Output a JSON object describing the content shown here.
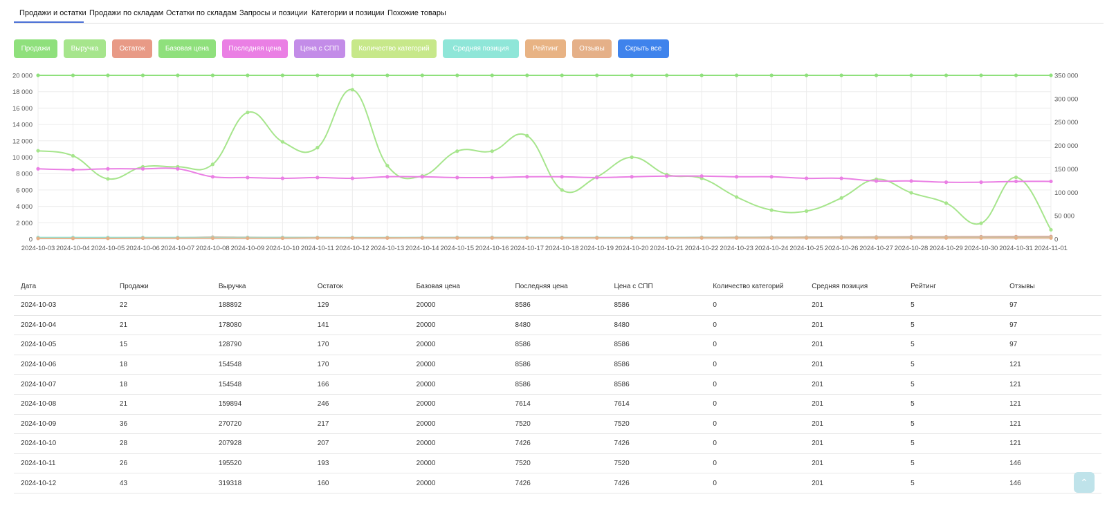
{
  "tabs": [
    {
      "label": "Продажи и остатки",
      "active": true
    },
    {
      "label": "Продажи по складам",
      "active": false
    },
    {
      "label": "Остатки по складам",
      "active": false
    },
    {
      "label": "Запросы и позиции",
      "active": false
    },
    {
      "label": "Категории и позиции",
      "active": false
    },
    {
      "label": "Похожие товары",
      "active": false
    }
  ],
  "series_buttons": [
    {
      "label": "Продажи",
      "color": "#8fe07c"
    },
    {
      "label": "Выручка",
      "color": "#a6e58c"
    },
    {
      "label": "Остаток",
      "color": "#e89a86"
    },
    {
      "label": "Базовая цена",
      "color": "#8fe07c"
    },
    {
      "label": "Последняя цена",
      "color": "#ea7fe4"
    },
    {
      "label": "Цена с СПП",
      "color": "#c38ce8"
    },
    {
      "label": "Количество категорий",
      "color": "#c7e88a"
    },
    {
      "label": "Средняя позиция",
      "color": "#8fe6d8"
    },
    {
      "label": "Рейтинг",
      "color": "#e8b384"
    },
    {
      "label": "Отзывы",
      "color": "#e5b088"
    },
    {
      "label": "Скрыть все",
      "color": "#3f83ec"
    }
  ],
  "chart_data": {
    "type": "line",
    "x": [
      "2024-10-03",
      "2024-10-04",
      "2024-10-05",
      "2024-10-06",
      "2024-10-07",
      "2024-10-08",
      "2024-10-09",
      "2024-10-10",
      "2024-10-11",
      "2024-10-12",
      "2024-10-13",
      "2024-10-14",
      "2024-10-15",
      "2024-10-16",
      "2024-10-17",
      "2024-10-18",
      "2024-10-19",
      "2024-10-20",
      "2024-10-21",
      "2024-10-22",
      "2024-10-23",
      "2024-10-24",
      "2024-10-25",
      "2024-10-26",
      "2024-10-27",
      "2024-10-28",
      "2024-10-29",
      "2024-10-30",
      "2024-10-31",
      "2024-11-01"
    ],
    "y_left": {
      "range": [
        0,
        20000
      ],
      "ticks": [
        "0",
        "2 000",
        "4 000",
        "6 000",
        "8 000",
        "10 000",
        "12 000",
        "14 000",
        "16 000",
        "18 000",
        "20 000"
      ]
    },
    "y_right": {
      "range": [
        0,
        350000
      ],
      "ticks": [
        "0",
        "50 000",
        "100 000",
        "150 000",
        "200 000",
        "250 000",
        "300 000",
        "350 000"
      ]
    },
    "grid": true,
    "series": [
      {
        "color": "#8fe07c",
        "axis": "left",
        "smooth": false,
        "values": [
          20000,
          20000,
          20000,
          20000,
          20000,
          20000,
          20000,
          20000,
          20000,
          20000,
          20000,
          20000,
          20000,
          20000,
          20000,
          20000,
          20000,
          20000,
          20000,
          20000,
          20000,
          20000,
          20000,
          20000,
          20000,
          20000,
          20000,
          20000,
          20000,
          20000
        ]
      },
      {
        "color": "#a6e58c",
        "axis": "right",
        "smooth": true,
        "values": [
          188892,
          178080,
          128790,
          154548,
          154548,
          159894,
          270720,
          207928,
          195520,
          319318,
          157000,
          135000,
          188000,
          188000,
          221000,
          105000,
          133000,
          175000,
          138000,
          130000,
          90000,
          62000,
          60000,
          88000,
          128000,
          99000,
          77000,
          34000,
          132000,
          20000
        ]
      },
      {
        "color": "#ea7fe4",
        "axis": "left",
        "smooth": true,
        "values": [
          8586,
          8480,
          8586,
          8586,
          8586,
          7614,
          7520,
          7426,
          7520,
          7426,
          7614,
          7614,
          7520,
          7520,
          7614,
          7614,
          7520,
          7614,
          7700,
          7700,
          7614,
          7614,
          7426,
          7426,
          7100,
          7100,
          6950,
          6950,
          7050,
          7050
        ]
      },
      {
        "color": "#e89a86",
        "axis": "left",
        "smooth": true,
        "values": [
          129,
          141,
          170,
          170,
          166,
          246,
          217,
          207,
          193,
          160,
          150,
          200,
          210,
          210,
          200,
          190,
          190,
          180,
          200,
          220,
          230,
          240,
          250,
          260,
          270,
          280,
          290,
          300,
          310,
          320
        ]
      },
      {
        "color": "#8fe6d8",
        "axis": "left",
        "smooth": false,
        "values": [
          201,
          201,
          201,
          201,
          201,
          201,
          201,
          201,
          201,
          201,
          201,
          201,
          201,
          201,
          201,
          201,
          201,
          201,
          201,
          201,
          201,
          201,
          201,
          201,
          201,
          201,
          201,
          201,
          201,
          201
        ]
      },
      {
        "color": "#e5b088",
        "axis": "left",
        "smooth": false,
        "values": [
          97,
          97,
          97,
          121,
          121,
          121,
          121,
          121,
          146,
          146,
          146,
          146,
          146,
          146,
          146,
          146,
          146,
          146,
          146,
          146,
          146,
          146,
          146,
          146,
          146,
          146,
          146,
          146,
          146,
          146
        ]
      }
    ]
  },
  "table": {
    "headers": [
      "Дата",
      "Продажи",
      "Выручка",
      "Остаток",
      "Базовая цена",
      "Последняя цена",
      "Цена с СПП",
      "Количество категорий",
      "Средняя позиция",
      "Рейтинг",
      "Отзывы"
    ],
    "rows": [
      [
        "2024-10-03",
        "22",
        "188892",
        "129",
        "20000",
        "8586",
        "8586",
        "0",
        "201",
        "5",
        "97"
      ],
      [
        "2024-10-04",
        "21",
        "178080",
        "141",
        "20000",
        "8480",
        "8480",
        "0",
        "201",
        "5",
        "97"
      ],
      [
        "2024-10-05",
        "15",
        "128790",
        "170",
        "20000",
        "8586",
        "8586",
        "0",
        "201",
        "5",
        "97"
      ],
      [
        "2024-10-06",
        "18",
        "154548",
        "170",
        "20000",
        "8586",
        "8586",
        "0",
        "201",
        "5",
        "121"
      ],
      [
        "2024-10-07",
        "18",
        "154548",
        "166",
        "20000",
        "8586",
        "8586",
        "0",
        "201",
        "5",
        "121"
      ],
      [
        "2024-10-08",
        "21",
        "159894",
        "246",
        "20000",
        "7614",
        "7614",
        "0",
        "201",
        "5",
        "121"
      ],
      [
        "2024-10-09",
        "36",
        "270720",
        "217",
        "20000",
        "7520",
        "7520",
        "0",
        "201",
        "5",
        "121"
      ],
      [
        "2024-10-10",
        "28",
        "207928",
        "207",
        "20000",
        "7426",
        "7426",
        "0",
        "201",
        "5",
        "121"
      ],
      [
        "2024-10-11",
        "26",
        "195520",
        "193",
        "20000",
        "7520",
        "7520",
        "0",
        "201",
        "5",
        "146"
      ],
      [
        "2024-10-12",
        "43",
        "319318",
        "160",
        "20000",
        "7426",
        "7426",
        "0",
        "201",
        "5",
        "146"
      ]
    ]
  },
  "scroll_top_icon": "chevron-up-icon"
}
